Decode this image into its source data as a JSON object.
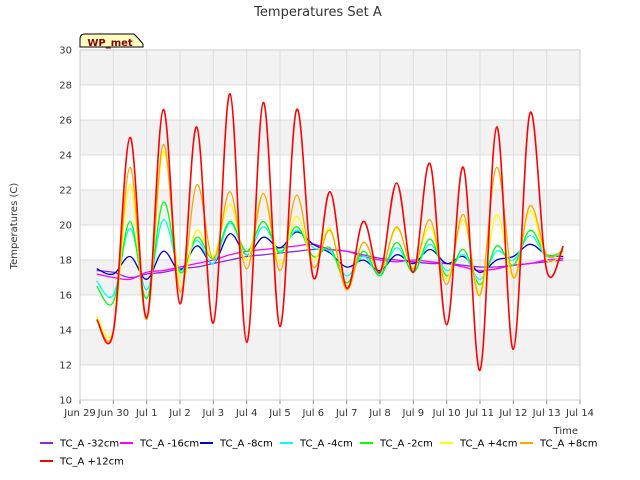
{
  "chart_data": {
    "type": "line",
    "title": "Temperatures Set A",
    "ylabel": "Temperatures (C)",
    "xlabel": "Time",
    "badge": "WP_met",
    "ylim": [
      10,
      30
    ],
    "xlim": [
      "2023-06-29",
      "2023-07-14"
    ],
    "y_ticks": [
      10,
      12,
      14,
      16,
      18,
      20,
      22,
      24,
      26,
      28,
      30
    ],
    "x_ticks": [
      "Jun 29",
      "Jun 30",
      "Jul 1",
      "Jul 2",
      "Jul 3",
      "Jul 4",
      "Jul 5",
      "Jul 6",
      "Jul 7",
      "Jul 8",
      "Jul 9",
      "Jul 10",
      "Jul 11",
      "Jul 12",
      "Jul 13",
      "Jul 14"
    ],
    "grid": true,
    "legend_position": "bottom",
    "x": [
      "2023-06-29 12:00",
      "2023-06-30 00:00",
      "2023-06-30 12:00",
      "2023-07-01 00:00",
      "2023-07-01 12:00",
      "2023-07-02 00:00",
      "2023-07-02 12:00",
      "2023-07-03 00:00",
      "2023-07-03 12:00",
      "2023-07-04 00:00",
      "2023-07-04 12:00",
      "2023-07-05 00:00",
      "2023-07-05 12:00",
      "2023-07-06 00:00",
      "2023-07-06 12:00",
      "2023-07-07 00:00",
      "2023-07-07 12:00",
      "2023-07-08 00:00",
      "2023-07-08 12:00",
      "2023-07-09 00:00",
      "2023-07-09 12:00",
      "2023-07-10 00:00",
      "2023-07-10 12:00",
      "2023-07-11 00:00",
      "2023-07-11 12:00",
      "2023-07-12 00:00",
      "2023-07-12 12:00",
      "2023-07-13 00:00",
      "2023-07-13 12:00"
    ],
    "series": [
      {
        "name": "TC_A -32cm",
        "color": "#8a2be2",
        "values": [
          17.4,
          17.3,
          17.0,
          17.2,
          17.3,
          17.5,
          17.6,
          17.8,
          18.0,
          18.2,
          18.3,
          18.4,
          18.5,
          18.6,
          18.6,
          18.5,
          18.3,
          18.1,
          18.0,
          17.9,
          17.8,
          17.8,
          17.7,
          17.6,
          17.6,
          17.7,
          17.8,
          17.9,
          18.0
        ]
      },
      {
        "name": "TC_A -16cm",
        "color": "#ff00ff",
        "values": [
          17.2,
          17.0,
          16.9,
          17.3,
          17.4,
          17.6,
          17.8,
          18.0,
          18.3,
          18.5,
          18.6,
          18.7,
          18.8,
          18.9,
          18.6,
          18.5,
          18.2,
          18.0,
          17.9,
          18.0,
          17.9,
          17.8,
          17.6,
          17.4,
          17.5,
          17.7,
          17.8,
          18.0,
          18.1
        ]
      },
      {
        "name": "TC_A -8cm",
        "color": "#0000cd",
        "values": [
          17.5,
          17.2,
          18.2,
          16.9,
          18.5,
          17.4,
          18.8,
          17.8,
          19.5,
          18.3,
          19.3,
          18.7,
          19.6,
          18.9,
          18.4,
          17.6,
          18.0,
          17.4,
          18.3,
          17.8,
          18.6,
          17.8,
          18.2,
          17.3,
          18.0,
          18.2,
          18.9,
          18.3,
          18.2
        ]
      },
      {
        "name": "TC_A -4cm",
        "color": "#00ffff",
        "values": [
          16.8,
          16.0,
          19.8,
          16.3,
          20.3,
          17.4,
          19.1,
          17.8,
          20.1,
          18.3,
          19.9,
          18.5,
          19.7,
          18.7,
          18.5,
          17.1,
          18.2,
          17.2,
          18.7,
          17.4,
          18.9,
          17.4,
          18.3,
          16.9,
          18.5,
          18.0,
          19.4,
          18.2,
          18.4
        ]
      },
      {
        "name": "TC_A -2cm",
        "color": "#00ff00",
        "values": [
          16.5,
          15.6,
          20.2,
          15.8,
          21.3,
          17.3,
          19.3,
          18.1,
          20.2,
          18.5,
          20.2,
          18.4,
          19.9,
          18.2,
          18.7,
          16.7,
          18.5,
          17.1,
          19.0,
          17.3,
          19.2,
          17.1,
          18.6,
          16.6,
          18.8,
          17.7,
          19.7,
          18.3,
          18.5
        ]
      },
      {
        "name": "TC_A +4cm",
        "color": "#ffff00",
        "values": [
          14.8,
          14.0,
          22.3,
          14.8,
          24.2,
          16.8,
          19.7,
          18.2,
          21.2,
          18.0,
          21.8,
          17.8,
          20.5,
          18.0,
          19.8,
          16.5,
          19.0,
          17.3,
          19.8,
          17.6,
          19.9,
          16.9,
          20.3,
          16.1,
          20.6,
          17.0,
          20.8,
          18.0,
          18.4
        ]
      },
      {
        "name": "TC_A +8cm",
        "color": "#ffa500",
        "values": [
          14.6,
          13.9,
          23.3,
          14.6,
          24.6,
          16.2,
          22.3,
          18.0,
          21.9,
          17.5,
          21.8,
          17.4,
          21.7,
          17.6,
          19.7,
          16.3,
          19.0,
          17.3,
          19.9,
          17.5,
          20.3,
          16.6,
          20.6,
          16.0,
          23.3,
          17.0,
          21.1,
          18.3,
          18.6
        ]
      },
      {
        "name": "TC_A +12cm",
        "color": "#ff0000",
        "values": [
          14.6,
          13.9,
          25.0,
          14.7,
          26.6,
          15.5,
          25.6,
          14.4,
          27.5,
          13.3,
          27.0,
          14.2,
          26.6,
          17.0,
          21.9,
          16.4,
          20.2,
          17.3,
          22.4,
          17.3,
          23.5,
          14.3,
          23.3,
          11.7,
          25.6,
          12.9,
          26.4,
          17.4,
          18.8
        ]
      }
    ]
  }
}
